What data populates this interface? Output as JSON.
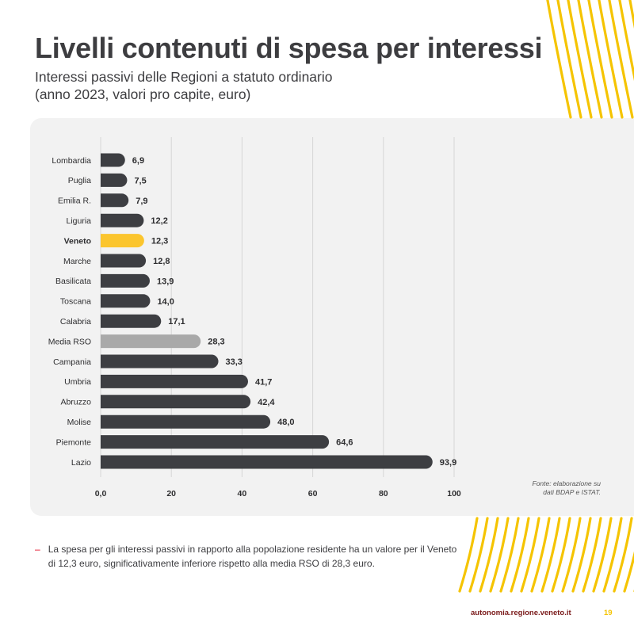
{
  "page": {
    "title": "Livelli contenuti di spesa per interessi",
    "subtitle_line1": "Interessi passivi delle Regioni a statuto ordinario",
    "subtitle_line2": "(anno 2023, valori pro capite, euro)",
    "source_line1": "Fonte: elaborazione su",
    "source_line2": "dati BDAP e ISTAT.",
    "note_dash": "–",
    "note_text": "La spesa per gli interessi passivi in rapporto alla popolazione residente ha un valore per il Veneto di 12,3 euro, significativamente inferiore rispetto alla media RSO di 28,3 euro.",
    "footer_url": "autonomia.regione.veneto.it",
    "page_number": "19"
  },
  "colors": {
    "bar_default": "#3d3e42",
    "bar_highlight": "#fbc52d",
    "bar_average": "#a9a9a9",
    "decoration": "#f5c400"
  },
  "chart_data": {
    "type": "bar",
    "orientation": "horizontal",
    "categories": [
      "Lombardia",
      "Puglia",
      "Emilia R.",
      "Liguria",
      "Veneto",
      "Marche",
      "Basilicata",
      "Toscana",
      "Calabria",
      "Media RSO",
      "Campania",
      "Umbria",
      "Abruzzo",
      "Molise",
      "Piemonte",
      "Lazio"
    ],
    "values": [
      6.9,
      7.5,
      7.9,
      12.2,
      12.3,
      12.8,
      13.9,
      14.0,
      17.1,
      28.3,
      33.3,
      41.7,
      42.4,
      48.0,
      64.6,
      93.9
    ],
    "value_labels": [
      "6,9",
      "7,5",
      "7,9",
      "12,2",
      "12,3",
      "12,8",
      "13,9",
      "14,0",
      "17,1",
      "28,3",
      "33,3",
      "41,7",
      "42,4",
      "48,0",
      "64,6",
      "93,9"
    ],
    "highlight": [
      "Veneto"
    ],
    "average": [
      "Media RSO"
    ],
    "xlim": [
      0,
      100
    ],
    "x_ticks": [
      0,
      20,
      40,
      60,
      80,
      100
    ],
    "x_tick_labels": [
      "0,0",
      "20",
      "40",
      "60",
      "80",
      "100"
    ],
    "grid": true,
    "title": "",
    "xlabel": "",
    "ylabel": ""
  }
}
